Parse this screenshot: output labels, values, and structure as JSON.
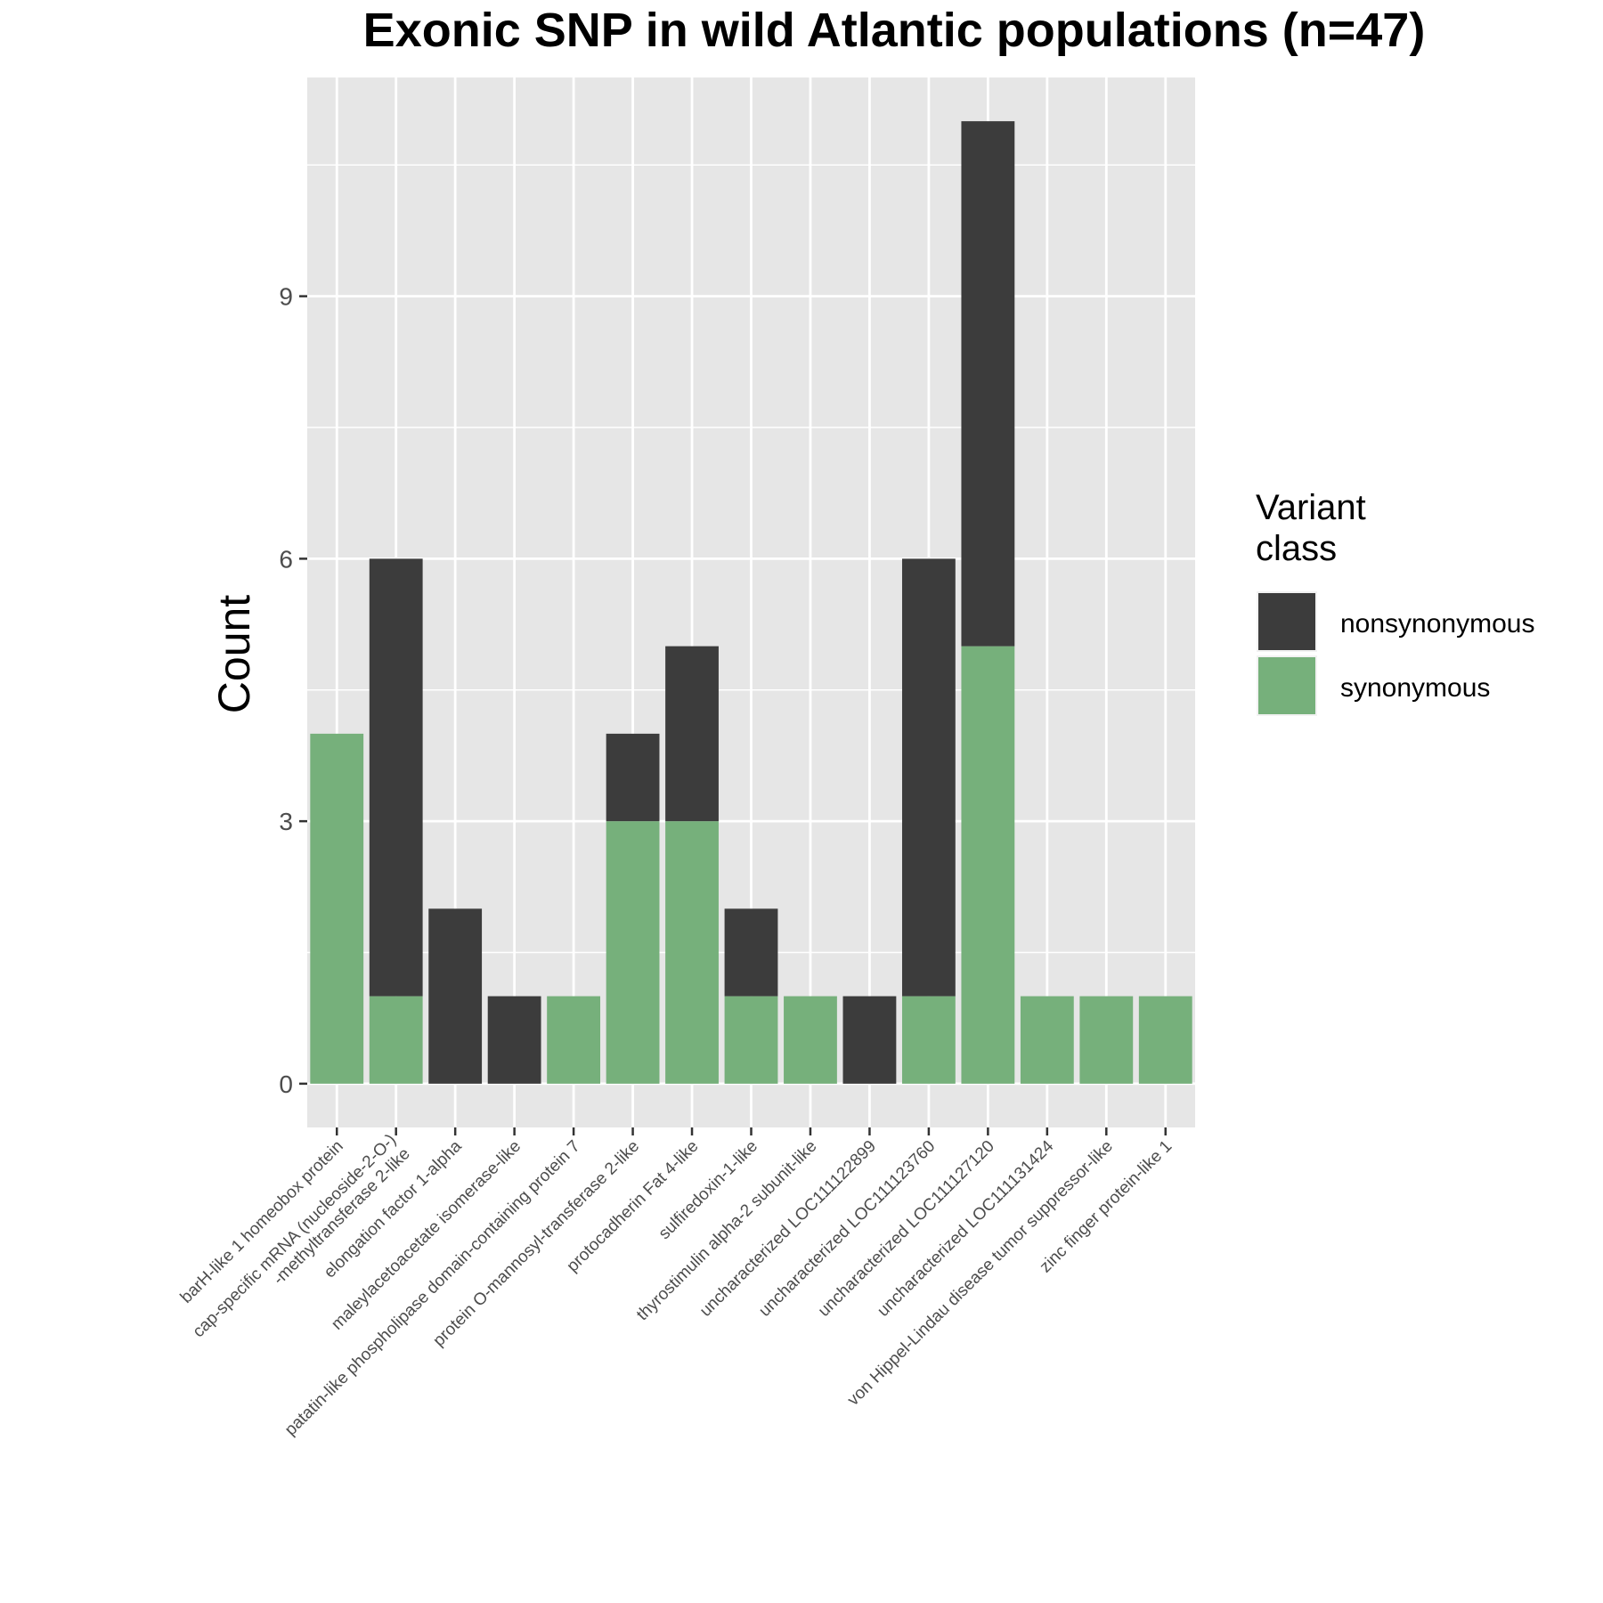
{
  "chart_data": {
    "type": "bar",
    "stacked": true,
    "title": "Exonic SNP in wild Atlantic populations (n=47)",
    "ylabel": "Count",
    "xlabel": "",
    "ylim": [
      -0.5,
      11.5
    ],
    "yticks": [
      0,
      3,
      6,
      9
    ],
    "grid": true,
    "legend_position": "right",
    "legend_title_lines": [
      "Variant",
      "class"
    ],
    "categories": [
      [
        "barH-like 1 homeobox protein"
      ],
      [
        "cap-specific mRNA (nucleoside-2-O-)",
        "-methyltransferase 2-like"
      ],
      [
        "elongation factor 1-alpha"
      ],
      [
        "maleylacetoacetate isomerase-like"
      ],
      [
        "patatin-like phospholipase domain-containing protein 7"
      ],
      [
        "protein O-mannosyl-transferase 2-like"
      ],
      [
        "protocadherin Fat 4-like"
      ],
      [
        "sulfiredoxin-1-like"
      ],
      [
        "thyrostimulin alpha-2 subunit-like"
      ],
      [
        "uncharacterized LOC111122899"
      ],
      [
        "uncharacterized LOC111123760"
      ],
      [
        "uncharacterized LOC111127120"
      ],
      [
        "uncharacterized LOC111131424"
      ],
      [
        "von Hippel-Lindau disease tumor suppressor-like"
      ],
      [
        "zinc finger protein-like 1"
      ]
    ],
    "series": [
      {
        "name": "nonsynonymous",
        "color": "#3c3c3c",
        "values": [
          0,
          5,
          2,
          1,
          0,
          1,
          2,
          1,
          0,
          1,
          5,
          6,
          0,
          0,
          0
        ]
      },
      {
        "name": "synonymous",
        "color": "#76b07b",
        "values": [
          4,
          1,
          0,
          0,
          1,
          3,
          3,
          1,
          1,
          0,
          1,
          5,
          1,
          1,
          1
        ]
      }
    ],
    "stack_order_bottom_to_top": [
      "synonymous",
      "nonsynonymous"
    ]
  }
}
